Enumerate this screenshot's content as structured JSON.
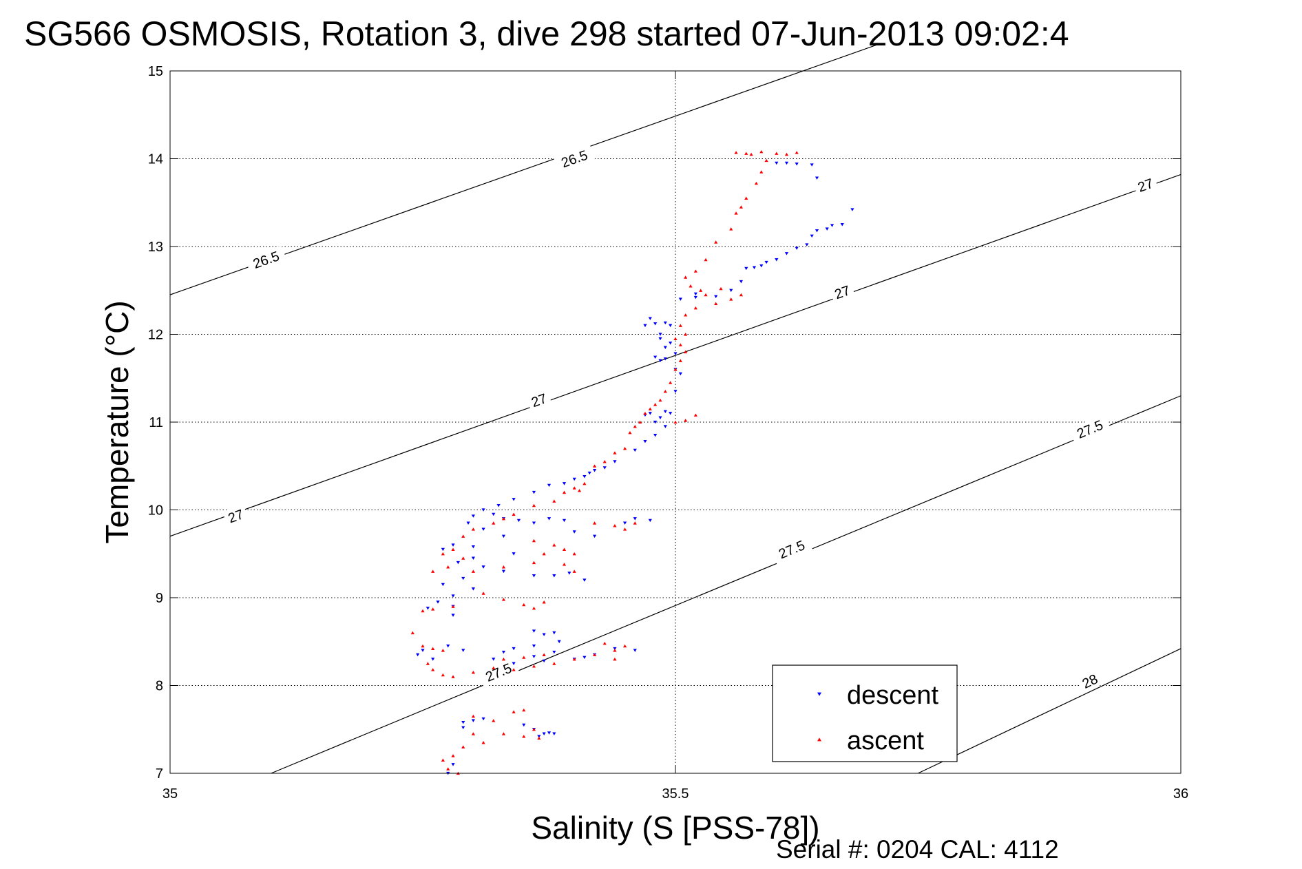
{
  "chart_data": {
    "type": "scatter",
    "title": "SG566 OSMOSIS, Rotation 3, dive 298 started 07-Jun-2013 09:02:4",
    "xlabel": "Salinity (S [PSS-78])",
    "ylabel": "Temperature (°C)",
    "xlim": [
      35,
      36
    ],
    "ylim": [
      7,
      15
    ],
    "grid": "dotted",
    "x_ticks": [
      "35",
      "35.5",
      "36"
    ],
    "y_ticks": [
      "7",
      "8",
      "9",
      "10",
      "11",
      "12",
      "13",
      "14",
      "15"
    ],
    "legend_position": "bottom-right",
    "density_contours": [
      {
        "level": "26.5",
        "points": [
          [
            35.0,
            12.45
          ],
          [
            35.7,
            15.3
          ]
        ],
        "labels": [
          {
            "text": "26.5",
            "x": 35.095,
            "y": 12.85
          },
          {
            "text": "26.5",
            "x": 35.4,
            "y": 14.0
          }
        ]
      },
      {
        "level": "27",
        "points": [
          [
            35.0,
            9.7
          ],
          [
            36.0,
            13.82
          ]
        ],
        "labels": [
          {
            "text": "27",
            "x": 35.065,
            "y": 9.93
          },
          {
            "text": "27",
            "x": 35.365,
            "y": 11.25
          },
          {
            "text": "27",
            "x": 35.665,
            "y": 12.48
          },
          {
            "text": "27",
            "x": 35.965,
            "y": 13.7
          }
        ]
      },
      {
        "level": "27.5",
        "points": [
          [
            35.1,
            7.0
          ],
          [
            36.0,
            11.3
          ]
        ],
        "labels": [
          {
            "text": "27.5",
            "x": 35.325,
            "y": 8.15
          },
          {
            "text": "27.5",
            "x": 35.615,
            "y": 9.55
          },
          {
            "text": "27.5",
            "x": 35.91,
            "y": 10.92
          }
        ]
      },
      {
        "level": "28",
        "points": [
          [
            35.74,
            7.0
          ],
          [
            36.0,
            8.42
          ]
        ],
        "labels": [
          {
            "text": "28",
            "x": 35.91,
            "y": 8.05
          }
        ]
      }
    ],
    "series": [
      {
        "name": "descent",
        "color": "#0000ff",
        "marker": "triangle-down",
        "points": [
          [
            35.6,
            13.95
          ],
          [
            35.61,
            13.95
          ],
          [
            35.62,
            13.94
          ],
          [
            35.635,
            13.93
          ],
          [
            35.64,
            13.78
          ],
          [
            35.675,
            13.42
          ],
          [
            35.665,
            13.25
          ],
          [
            35.655,
            13.24
          ],
          [
            35.65,
            13.2
          ],
          [
            35.64,
            13.18
          ],
          [
            35.635,
            13.12
          ],
          [
            35.63,
            13.02
          ],
          [
            35.62,
            12.98
          ],
          [
            35.61,
            12.92
          ],
          [
            35.6,
            12.85
          ],
          [
            35.59,
            12.82
          ],
          [
            35.585,
            12.78
          ],
          [
            35.578,
            12.76
          ],
          [
            35.57,
            12.75
          ],
          [
            35.565,
            12.6
          ],
          [
            35.555,
            12.5
          ],
          [
            35.54,
            12.43
          ],
          [
            35.52,
            12.42
          ],
          [
            35.52,
            12.46
          ],
          [
            35.505,
            12.4
          ],
          [
            35.49,
            12.13
          ],
          [
            35.48,
            12.12
          ],
          [
            35.47,
            12.1
          ],
          [
            35.475,
            12.18
          ],
          [
            35.495,
            12.1
          ],
          [
            35.485,
            12.0
          ],
          [
            35.485,
            11.95
          ],
          [
            35.495,
            11.9
          ],
          [
            35.49,
            11.85
          ],
          [
            35.5,
            11.78
          ],
          [
            35.48,
            11.74
          ],
          [
            35.485,
            11.7
          ],
          [
            35.49,
            11.72
          ],
          [
            35.5,
            11.6
          ],
          [
            35.505,
            11.55
          ],
          [
            35.5,
            11.35
          ],
          [
            35.49,
            11.12
          ],
          [
            35.475,
            11.1
          ],
          [
            35.47,
            11.08
          ],
          [
            35.485,
            11.05
          ],
          [
            35.48,
            11.0
          ],
          [
            35.495,
            11.1
          ],
          [
            35.49,
            10.95
          ],
          [
            35.48,
            10.85
          ],
          [
            35.47,
            10.78
          ],
          [
            35.46,
            10.68
          ],
          [
            35.44,
            10.55
          ],
          [
            35.43,
            10.48
          ],
          [
            35.42,
            10.45
          ],
          [
            35.415,
            10.42
          ],
          [
            35.41,
            10.38
          ],
          [
            35.4,
            10.35
          ],
          [
            35.39,
            10.3
          ],
          [
            35.375,
            10.28
          ],
          [
            35.36,
            10.2
          ],
          [
            35.34,
            10.12
          ],
          [
            35.325,
            10.05
          ],
          [
            35.31,
            10.0
          ],
          [
            35.3,
            9.93
          ],
          [
            35.32,
            9.95
          ],
          [
            35.33,
            9.9
          ],
          [
            35.345,
            9.88
          ],
          [
            35.36,
            9.85
          ],
          [
            35.375,
            9.9
          ],
          [
            35.39,
            9.88
          ],
          [
            35.4,
            9.75
          ],
          [
            35.42,
            9.7
          ],
          [
            35.45,
            9.85
          ],
          [
            35.46,
            9.9
          ],
          [
            35.475,
            9.88
          ],
          [
            35.295,
            9.85
          ],
          [
            35.31,
            9.78
          ],
          [
            35.33,
            9.7
          ],
          [
            35.28,
            9.6
          ],
          [
            35.27,
            9.55
          ],
          [
            35.3,
            9.58
          ],
          [
            35.34,
            9.5
          ],
          [
            35.3,
            9.45
          ],
          [
            35.285,
            9.4
          ],
          [
            35.31,
            9.35
          ],
          [
            35.33,
            9.3
          ],
          [
            35.36,
            9.25
          ],
          [
            35.38,
            9.25
          ],
          [
            35.395,
            9.28
          ],
          [
            35.41,
            9.2
          ],
          [
            35.29,
            9.22
          ],
          [
            35.27,
            9.15
          ],
          [
            35.3,
            9.1
          ],
          [
            35.28,
            9.02
          ],
          [
            35.265,
            8.95
          ],
          [
            35.28,
            8.9
          ],
          [
            35.255,
            8.88
          ],
          [
            35.28,
            8.8
          ],
          [
            35.36,
            8.62
          ],
          [
            35.37,
            8.58
          ],
          [
            35.38,
            8.6
          ],
          [
            35.385,
            8.5
          ],
          [
            35.36,
            8.45
          ],
          [
            35.34,
            8.42
          ],
          [
            35.33,
            8.38
          ],
          [
            35.32,
            8.3
          ],
          [
            35.34,
            8.25
          ],
          [
            35.37,
            8.28
          ],
          [
            35.4,
            8.3
          ],
          [
            35.42,
            8.35
          ],
          [
            35.44,
            8.42
          ],
          [
            35.46,
            8.4
          ],
          [
            35.38,
            8.38
          ],
          [
            35.41,
            8.32
          ],
          [
            35.36,
            8.33
          ],
          [
            35.25,
            8.4
          ],
          [
            35.245,
            8.35
          ],
          [
            35.26,
            8.3
          ],
          [
            35.275,
            8.45
          ],
          [
            35.29,
            8.4
          ],
          [
            35.3,
            7.6
          ],
          [
            35.31,
            7.62
          ],
          [
            35.35,
            7.55
          ],
          [
            35.36,
            7.5
          ],
          [
            35.37,
            7.45
          ],
          [
            35.375,
            7.46
          ],
          [
            35.365,
            7.42
          ],
          [
            35.29,
            7.58
          ],
          [
            35.29,
            7.52
          ],
          [
            35.28,
            7.1
          ],
          [
            35.275,
            7.0
          ],
          [
            35.38,
            7.45
          ]
        ]
      },
      {
        "name": "ascent",
        "color": "#ff0000",
        "marker": "triangle-up",
        "points": [
          [
            35.56,
            14.07
          ],
          [
            35.57,
            14.06
          ],
          [
            35.575,
            14.05
          ],
          [
            35.585,
            14.08
          ],
          [
            35.6,
            14.06
          ],
          [
            35.61,
            14.05
          ],
          [
            35.62,
            14.07
          ],
          [
            35.59,
            13.98
          ],
          [
            35.585,
            13.85
          ],
          [
            35.58,
            13.72
          ],
          [
            35.57,
            13.55
          ],
          [
            35.565,
            13.45
          ],
          [
            35.56,
            13.38
          ],
          [
            35.555,
            13.2
          ],
          [
            35.54,
            13.05
          ],
          [
            35.53,
            12.85
          ],
          [
            35.52,
            12.72
          ],
          [
            35.51,
            12.65
          ],
          [
            35.515,
            12.55
          ],
          [
            35.525,
            12.5
          ],
          [
            35.53,
            12.45
          ],
          [
            35.545,
            12.52
          ],
          [
            35.555,
            12.4
          ],
          [
            35.565,
            12.45
          ],
          [
            35.54,
            12.35
          ],
          [
            35.52,
            12.3
          ],
          [
            35.51,
            12.22
          ],
          [
            35.505,
            12.1
          ],
          [
            35.51,
            12.0
          ],
          [
            35.5,
            11.95
          ],
          [
            35.505,
            11.88
          ],
          [
            35.51,
            11.8
          ],
          [
            35.505,
            11.7
          ],
          [
            35.5,
            11.6
          ],
          [
            35.495,
            11.45
          ],
          [
            35.49,
            11.35
          ],
          [
            35.485,
            11.25
          ],
          [
            35.48,
            11.2
          ],
          [
            35.475,
            11.15
          ],
          [
            35.47,
            11.1
          ],
          [
            35.465,
            11.0
          ],
          [
            35.46,
            10.95
          ],
          [
            35.455,
            10.88
          ],
          [
            35.5,
            11.0
          ],
          [
            35.51,
            11.02
          ],
          [
            35.52,
            11.08
          ],
          [
            35.45,
            10.7
          ],
          [
            35.44,
            10.65
          ],
          [
            35.43,
            10.55
          ],
          [
            35.42,
            10.5
          ],
          [
            35.41,
            10.3
          ],
          [
            35.405,
            10.22
          ],
          [
            35.4,
            10.25
          ],
          [
            35.39,
            10.2
          ],
          [
            35.38,
            10.1
          ],
          [
            35.36,
            10.05
          ],
          [
            35.34,
            9.95
          ],
          [
            35.33,
            9.9
          ],
          [
            35.32,
            9.85
          ],
          [
            35.3,
            9.78
          ],
          [
            35.29,
            9.7
          ],
          [
            35.42,
            9.85
          ],
          [
            35.44,
            9.82
          ],
          [
            35.45,
            9.78
          ],
          [
            35.46,
            9.85
          ],
          [
            35.36,
            9.65
          ],
          [
            35.38,
            9.6
          ],
          [
            35.39,
            9.55
          ],
          [
            35.4,
            9.5
          ],
          [
            35.37,
            9.5
          ],
          [
            35.28,
            9.55
          ],
          [
            35.27,
            9.5
          ],
          [
            35.29,
            9.45
          ],
          [
            35.275,
            9.35
          ],
          [
            35.26,
            9.3
          ],
          [
            35.3,
            9.3
          ],
          [
            35.33,
            9.35
          ],
          [
            35.36,
            9.4
          ],
          [
            35.39,
            9.38
          ],
          [
            35.4,
            9.3
          ],
          [
            35.31,
            9.05
          ],
          [
            35.33,
            8.98
          ],
          [
            35.35,
            8.92
          ],
          [
            35.36,
            8.88
          ],
          [
            35.37,
            8.95
          ],
          [
            35.28,
            8.9
          ],
          [
            35.26,
            8.87
          ],
          [
            35.25,
            8.85
          ],
          [
            35.24,
            8.6
          ],
          [
            35.25,
            8.45
          ],
          [
            35.26,
            8.42
          ],
          [
            35.27,
            8.4
          ],
          [
            35.255,
            8.25
          ],
          [
            35.26,
            8.18
          ],
          [
            35.27,
            8.12
          ],
          [
            35.28,
            8.1
          ],
          [
            35.3,
            8.15
          ],
          [
            35.32,
            8.2
          ],
          [
            35.34,
            8.18
          ],
          [
            35.36,
            8.22
          ],
          [
            35.38,
            8.25
          ],
          [
            35.4,
            8.3
          ],
          [
            35.42,
            8.35
          ],
          [
            35.44,
            8.4
          ],
          [
            35.45,
            8.45
          ],
          [
            35.43,
            8.48
          ],
          [
            35.44,
            8.3
          ],
          [
            35.33,
            8.3
          ],
          [
            35.35,
            8.32
          ],
          [
            35.37,
            8.35
          ],
          [
            35.3,
            7.65
          ],
          [
            35.32,
            7.6
          ],
          [
            35.34,
            7.7
          ],
          [
            35.35,
            7.72
          ],
          [
            35.36,
            7.5
          ],
          [
            35.35,
            7.42
          ],
          [
            35.365,
            7.4
          ],
          [
            35.3,
            7.45
          ],
          [
            35.29,
            7.3
          ],
          [
            35.28,
            7.2
          ],
          [
            35.27,
            7.15
          ],
          [
            35.275,
            7.05
          ],
          [
            35.285,
            7.0
          ],
          [
            35.31,
            7.35
          ],
          [
            35.33,
            7.45
          ]
        ]
      }
    ]
  },
  "footer": {
    "serial": "Serial #: 0204  CAL: 4112"
  }
}
